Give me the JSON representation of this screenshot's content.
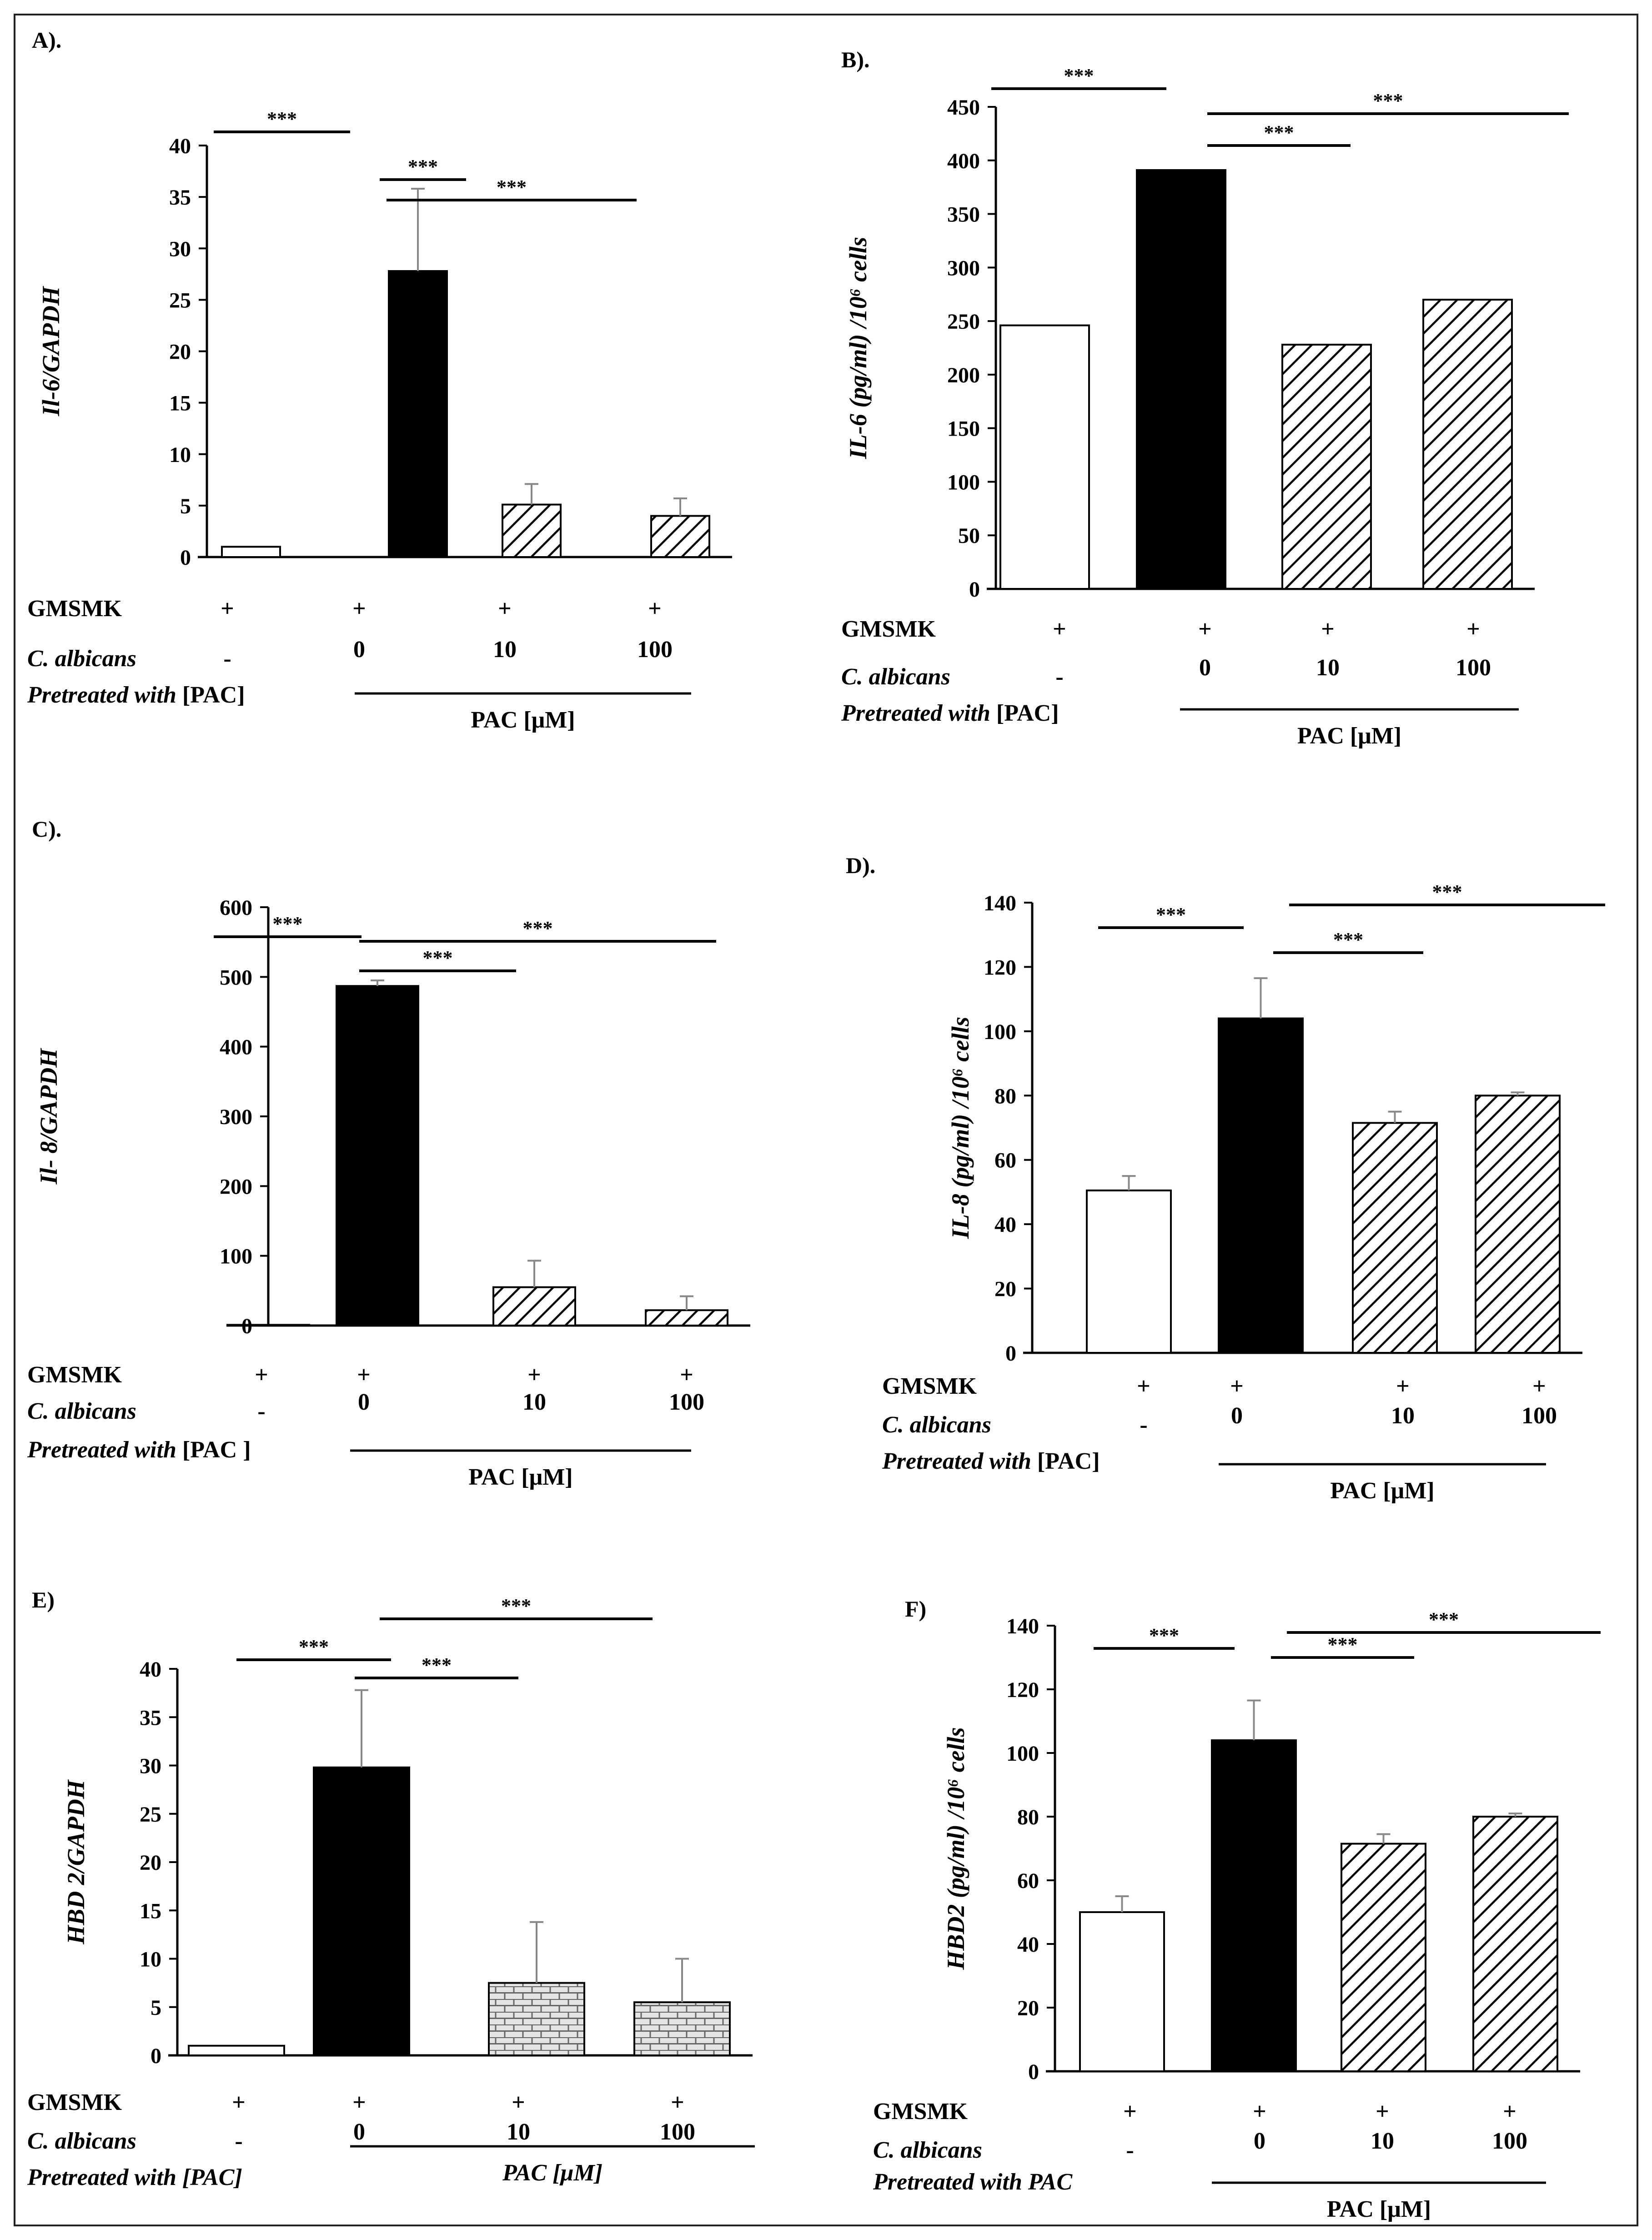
{
  "chart_data": [
    {
      "id": "A",
      "type": "bar",
      "panel_label": "A).",
      "ylabel": "Il-6/GAPDH",
      "ylabel_italic": true,
      "ylim": [
        0,
        40
      ],
      "yticks": [
        "0",
        "5",
        "10",
        "15",
        "20",
        "25",
        "30",
        "35",
        "40"
      ],
      "values": [
        1,
        27.8,
        5.1,
        4.0
      ],
      "errors": [
        0,
        8.0,
        2.0,
        1.7
      ],
      "fills": [
        "white",
        "black",
        "hatch",
        "hatch"
      ],
      "significance": [
        "***",
        "***",
        "***"
      ],
      "rows": {
        "gmsmk_label": "GMSMK",
        "gmsmk_values": [
          "+",
          "+",
          "+",
          "+"
        ],
        "calbicans_label": "C. albicans",
        "calbicans_values": [
          "-",
          "0",
          "10",
          "100"
        ],
        "pretreated_prefix": "Pretreated with",
        "pretreated_suffix": " [PAC]",
        "pac_label": "PAC [μM]"
      }
    },
    {
      "id": "B",
      "type": "bar",
      "panel_label": "B).",
      "ylabel": "IL-6 (pg/ml) /10⁶ cells",
      "ylabel_italic": true,
      "ylim": [
        0,
        450
      ],
      "yticks": [
        "0",
        "50",
        "100",
        "150",
        "200",
        "250",
        "300",
        "350",
        "400",
        "450"
      ],
      "values": [
        246,
        391,
        228,
        270
      ],
      "errors": [
        0,
        0,
        0,
        0
      ],
      "fills": [
        "white",
        "black",
        "hatch",
        "hatch"
      ],
      "significance": [
        "***",
        "***",
        "***"
      ],
      "rows": {
        "gmsmk_label": "GMSMK",
        "gmsmk_values": [
          "+",
          "+",
          "+",
          "+"
        ],
        "calbicans_label": "C. albicans",
        "calbicans_values": [
          "-",
          "0",
          "10",
          "100"
        ],
        "pretreated_prefix": "Pretreated with",
        "pretreated_suffix": " [PAC]",
        "pac_label": "PAC [μM]"
      }
    },
    {
      "id": "C",
      "type": "bar",
      "panel_label": "C).",
      "ylabel": "Il- 8/GAPDH",
      "ylabel_italic": true,
      "ylim": [
        0,
        600
      ],
      "yticks": [
        "0",
        "100",
        "200",
        "300",
        "400",
        "500",
        "600"
      ],
      "values": [
        1,
        487,
        55,
        22
      ],
      "errors": [
        0,
        8,
        38,
        20
      ],
      "fills": [
        "white",
        "black",
        "hatch",
        "hatch"
      ],
      "significance": [
        "***",
        "***",
        "***"
      ],
      "rows": {
        "gmsmk_label": "GMSMK",
        "gmsmk_values": [
          "+",
          "+",
          "+",
          "+"
        ],
        "calbicans_label": "C. albicans",
        "calbicans_values": [
          "-",
          "0",
          "10",
          "100"
        ],
        "pretreated_prefix": "Pretreated with",
        "pretreated_suffix": " [PAC ]",
        "pac_label": "PAC [μM]"
      }
    },
    {
      "id": "D",
      "type": "bar",
      "panel_label": "D).",
      "ylabel": "IL-8 (pg/ml) /10⁶ cells",
      "ylabel_italic": true,
      "ylim": [
        0,
        140
      ],
      "yticks": [
        "0",
        "20",
        "40",
        "60",
        "80",
        "100",
        "120",
        "140"
      ],
      "values": [
        50.5,
        104,
        71.5,
        80
      ],
      "errors": [
        4.5,
        12.5,
        3.5,
        1.0
      ],
      "fills": [
        "white",
        "black",
        "hatch",
        "hatch"
      ],
      "significance": [
        "***",
        "***",
        "***"
      ],
      "rows": {
        "gmsmk_label": "GMSMK",
        "gmsmk_values": [
          "+",
          "+",
          "+",
          "+"
        ],
        "calbicans_label": "C. albicans",
        "calbicans_values": [
          "-",
          "0",
          "10",
          "100"
        ],
        "pretreated_prefix": "Pretreated with",
        "pretreated_suffix": " [PAC]",
        "pac_label": "PAC [μM]"
      }
    },
    {
      "id": "E",
      "type": "bar",
      "panel_label": "E)",
      "ylabel": "HBD 2/GAPDH",
      "ylabel_italic": true,
      "ylim": [
        0,
        40
      ],
      "yticks": [
        "0",
        "5",
        "10",
        "15",
        "20",
        "25",
        "30",
        "35",
        "40"
      ],
      "values": [
        1.0,
        29.8,
        7.5,
        5.5
      ],
      "errors": [
        0,
        8.0,
        6.3,
        4.5
      ],
      "fills": [
        "white",
        "black",
        "brick",
        "brick"
      ],
      "significance": [
        "***",
        "***",
        "***"
      ],
      "rows": {
        "gmsmk_label": "GMSMK",
        "gmsmk_values": [
          "+",
          "+",
          "+",
          "+"
        ],
        "calbicans_label": "C. albicans",
        "calbicans_values": [
          "-",
          "0",
          "10",
          "100"
        ],
        "pretreated_prefix": "Pretreated with [PAC]",
        "pretreated_suffix": "",
        "pac_label": "PAC [μM]"
      }
    },
    {
      "id": "F",
      "type": "bar",
      "panel_label": "F)",
      "ylabel": "HBD2 (pg/ml) /10⁶ cells",
      "ylabel_italic": true,
      "ylim": [
        0,
        140
      ],
      "yticks": [
        "0",
        "20",
        "40",
        "60",
        "80",
        "100",
        "120",
        "140"
      ],
      "values": [
        50,
        104,
        71.5,
        80
      ],
      "errors": [
        5.0,
        12.5,
        3.0,
        1.0
      ],
      "fills": [
        "white",
        "black",
        "hatch",
        "hatch"
      ],
      "significance": [
        "***",
        "***",
        "***"
      ],
      "rows": {
        "gmsmk_label": "GMSMK",
        "gmsmk_values": [
          "+",
          "+",
          "+",
          "+"
        ],
        "calbicans_label": "C. albicans",
        "calbicans_values": [
          "-",
          "0",
          "10",
          "100"
        ],
        "pretreated_prefix": "Pretreated with PAC",
        "pretreated_suffix": "",
        "pac_label": "PAC [μM]"
      }
    }
  ]
}
